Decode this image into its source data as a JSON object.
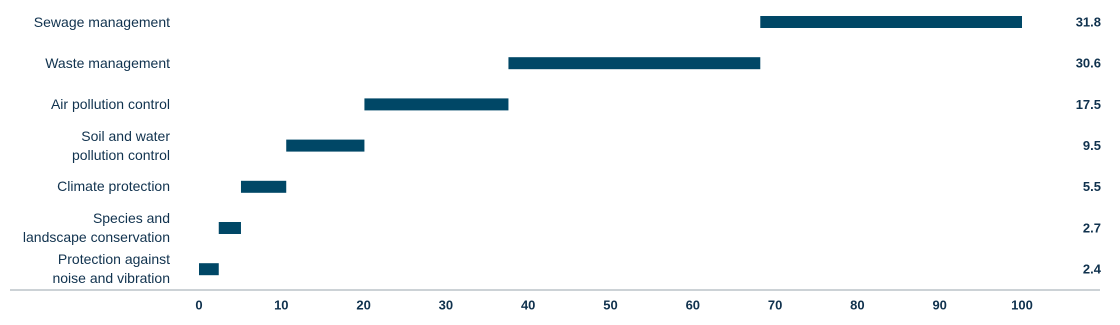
{
  "chart_data": {
    "type": "bar",
    "categories": [
      "Sewage management",
      "Waste management",
      "Air pollution control",
      "Soil and water\npollution control",
      "Climate protection",
      "Species and\nlandscape conservation",
      "Protection against\nnoise and vibration"
    ],
    "values": [
      31.8,
      30.6,
      17.5,
      9.5,
      5.5,
      2.7,
      2.4
    ],
    "color": "#004766",
    "xlim": [
      0,
      100
    ],
    "xticks": [
      0,
      10,
      20,
      30,
      40,
      50,
      60,
      70,
      80,
      90,
      100
    ]
  }
}
